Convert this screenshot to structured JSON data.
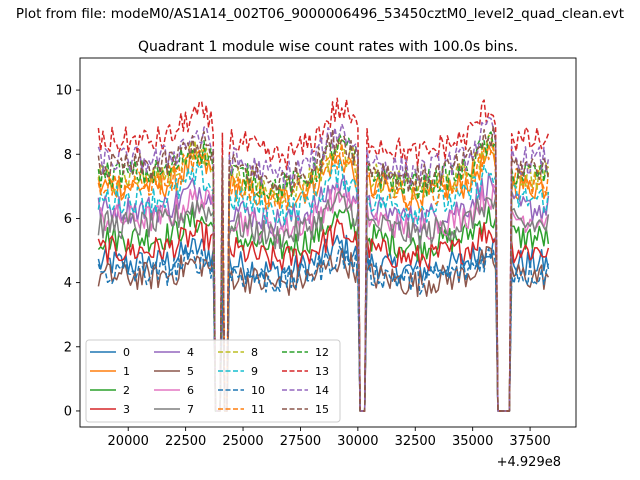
{
  "chart_data": {
    "type": "line",
    "suptitle": "Plot from file: modeM0/AS1A14_002T06_9000006496_53450cztM0_level2_quad_clean.evt",
    "title": "Quadrant 1 module wise count rates with 100.0s bins.",
    "xlabel": "",
    "ylabel": "",
    "x_offset_label": "+4.929e8",
    "xlim": [
      17900,
      39500
    ],
    "ylim": [
      -0.5,
      11.0
    ],
    "xticks": [
      20000,
      22500,
      25000,
      27500,
      30000,
      32500,
      35000,
      37500
    ],
    "xtick_labels": [
      "20000",
      "22500",
      "25000",
      "27500",
      "30000",
      "32500",
      "35000",
      "37500"
    ],
    "yticks": [
      0,
      2,
      4,
      6,
      8,
      10
    ],
    "ytick_labels": [
      "0",
      "2",
      "4",
      "6",
      "8",
      "10"
    ],
    "legend": {
      "position": "lower-left",
      "columns": 4
    },
    "gaps": [
      [
        23750,
        24000
      ],
      [
        24150,
        24300
      ],
      [
        30050,
        30300
      ],
      [
        36050,
        36600
      ]
    ],
    "x_start": 18700,
    "x_end": 38300,
    "bin": 100,
    "series": [
      {
        "name": "0",
        "color": "#1f77b4",
        "style": "solid",
        "level": 4.6
      },
      {
        "name": "1",
        "color": "#ff7f0e",
        "style": "solid",
        "level": 7.0
      },
      {
        "name": "2",
        "color": "#2ca02c",
        "style": "solid",
        "level": 5.4
      },
      {
        "name": "3",
        "color": "#d62728",
        "style": "solid",
        "level": 5.0
      },
      {
        "name": "4",
        "color": "#9467bd",
        "style": "solid",
        "level": 6.3
      },
      {
        "name": "5",
        "color": "#8c564b",
        "style": "solid",
        "level": 4.2
      },
      {
        "name": "6",
        "color": "#e377c2",
        "style": "solid",
        "level": 6.0
      },
      {
        "name": "7",
        "color": "#7f7f7f",
        "style": "solid",
        "level": 5.8
      },
      {
        "name": "8",
        "color": "#bcbd22",
        "style": "dashed",
        "level": 7.3
      },
      {
        "name": "9",
        "color": "#17becf",
        "style": "dashed",
        "level": 6.6
      },
      {
        "name": "10",
        "color": "#1f77b4",
        "style": "dashed",
        "level": 4.3
      },
      {
        "name": "11",
        "color": "#ff7f0e",
        "style": "dashed",
        "level": 7.1
      },
      {
        "name": "12",
        "color": "#2ca02c",
        "style": "dashed",
        "level": 7.4
      },
      {
        "name": "13",
        "color": "#d62728",
        "style": "dashed",
        "level": 8.4
      },
      {
        "name": "14",
        "color": "#9467bd",
        "style": "dashed",
        "level": 7.8
      },
      {
        "name": "15",
        "color": "#8c564b",
        "style": "dashed",
        "level": 7.6
      }
    ]
  }
}
